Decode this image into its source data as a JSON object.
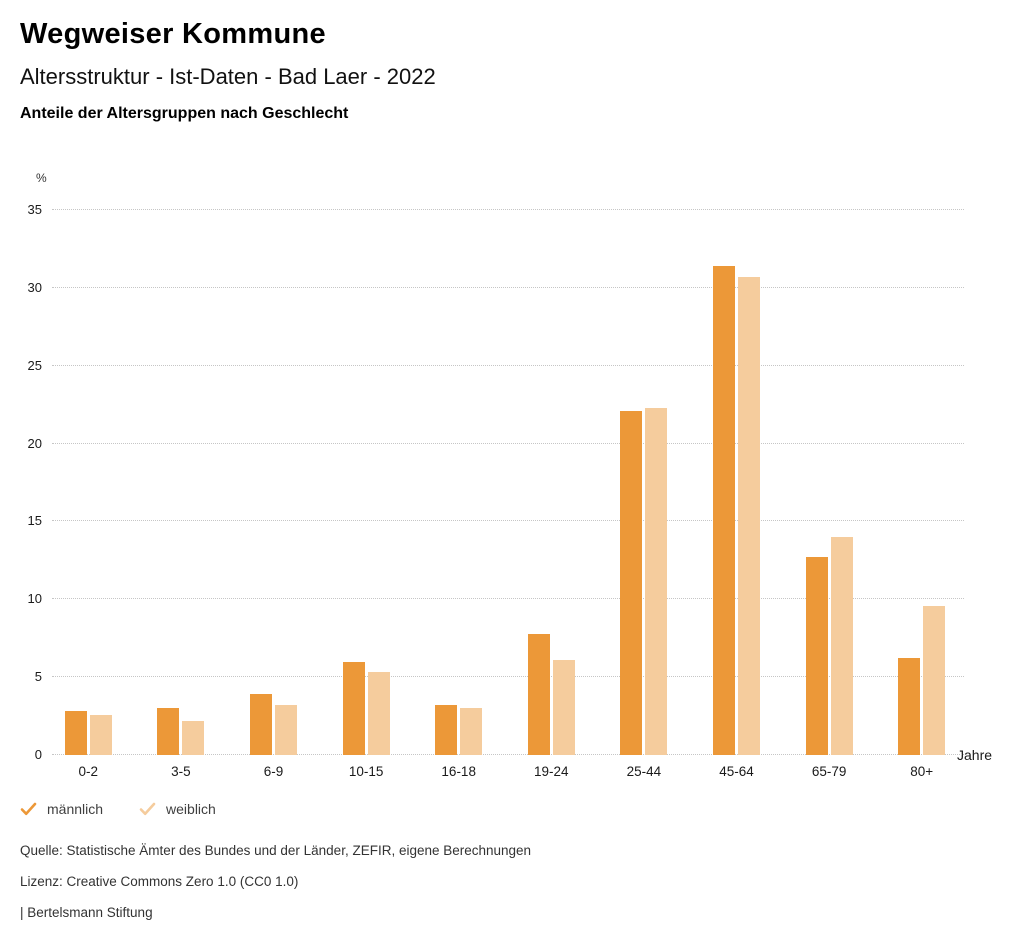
{
  "header": {
    "title": "Wegweiser Kommune",
    "subtitle": "Altersstruktur - Ist-Daten - Bad Laer - 2022",
    "heading": "Anteile der Altersgruppen nach Geschlecht"
  },
  "chart_data": {
    "type": "bar",
    "title": "Anteile der Altersgruppen nach Geschlecht",
    "categories": [
      "0-2",
      "3-5",
      "6-9",
      "10-15",
      "16-18",
      "19-24",
      "25-44",
      "45-64",
      "65-79",
      "80+"
    ],
    "series": [
      {
        "name": "männlich",
        "color": "#EC9838",
        "values": [
          2.8,
          3.0,
          3.9,
          6.0,
          3.2,
          7.8,
          22.1,
          31.4,
          12.7,
          6.2
        ]
      },
      {
        "name": "weiblich",
        "color": "#F5CC9D",
        "values": [
          2.6,
          2.2,
          3.2,
          5.3,
          3.0,
          6.1,
          22.3,
          30.7,
          14.0,
          9.6
        ]
      }
    ],
    "ylabel": "%",
    "xlabel": "Jahre",
    "ylim": [
      0,
      35
    ],
    "ytick_step": 5,
    "yticks": [
      0,
      5,
      10,
      15,
      20,
      25,
      30,
      35
    ],
    "grid": "horizontal-dotted",
    "legend_position": "bottom-left",
    "gridline_color": "#c6c6c6"
  },
  "legend": {
    "items": [
      {
        "label": "männlich",
        "color": "#EC9838",
        "marker": "check"
      },
      {
        "label": "weiblich",
        "color": "#F5CC9D",
        "marker": "check"
      }
    ]
  },
  "footer": {
    "source": "Quelle: Statistische Ämter des Bundes und der Länder, ZEFIR, eigene Berechnungen",
    "license": "Lizenz: Creative Commons Zero 1.0 (CC0 1.0)",
    "attribution": "| Bertelsmann Stiftung"
  }
}
